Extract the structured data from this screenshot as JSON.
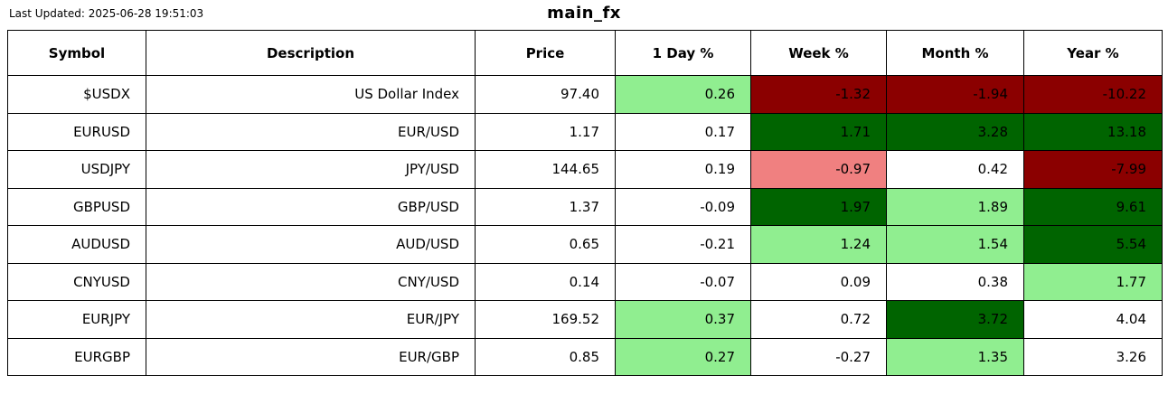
{
  "header": {
    "last_updated": "Last Updated: 2025-06-28 19:51:03",
    "title": "main_fx"
  },
  "colors": {
    "none": "#FFFFFF",
    "light_green": "#90EE90",
    "dark_green": "#006400",
    "light_red": "#F08080",
    "dark_red": "#8B0000",
    "border": "#000000",
    "text": "#000000"
  },
  "table": {
    "columns": [
      "Symbol",
      "Description",
      "Price",
      "1 Day %",
      "Week %",
      "Month %",
      "Year %"
    ],
    "rows": [
      {
        "symbol": "$USDX",
        "description": "US Dollar Index",
        "price": "97.40",
        "day": {
          "value": "0.26",
          "bg": "light_green"
        },
        "week": {
          "value": "-1.32",
          "bg": "dark_red"
        },
        "month": {
          "value": "-1.94",
          "bg": "dark_red"
        },
        "year": {
          "value": "-10.22",
          "bg": "dark_red"
        }
      },
      {
        "symbol": "EURUSD",
        "description": "EUR/USD",
        "price": "1.17",
        "day": {
          "value": "0.17",
          "bg": "none"
        },
        "week": {
          "value": "1.71",
          "bg": "dark_green"
        },
        "month": {
          "value": "3.28",
          "bg": "dark_green"
        },
        "year": {
          "value": "13.18",
          "bg": "dark_green"
        }
      },
      {
        "symbol": "USDJPY",
        "description": "JPY/USD",
        "price": "144.65",
        "day": {
          "value": "0.19",
          "bg": "none"
        },
        "week": {
          "value": "-0.97",
          "bg": "light_red"
        },
        "month": {
          "value": "0.42",
          "bg": "none"
        },
        "year": {
          "value": "-7.99",
          "bg": "dark_red"
        }
      },
      {
        "symbol": "GBPUSD",
        "description": "GBP/USD",
        "price": "1.37",
        "day": {
          "value": "-0.09",
          "bg": "none"
        },
        "week": {
          "value": "1.97",
          "bg": "dark_green"
        },
        "month": {
          "value": "1.89",
          "bg": "light_green"
        },
        "year": {
          "value": "9.61",
          "bg": "dark_green"
        }
      },
      {
        "symbol": "AUDUSD",
        "description": "AUD/USD",
        "price": "0.65",
        "day": {
          "value": "-0.21",
          "bg": "none"
        },
        "week": {
          "value": "1.24",
          "bg": "light_green"
        },
        "month": {
          "value": "1.54",
          "bg": "light_green"
        },
        "year": {
          "value": "5.54",
          "bg": "dark_green"
        }
      },
      {
        "symbol": "CNYUSD",
        "description": "CNY/USD",
        "price": "0.14",
        "day": {
          "value": "-0.07",
          "bg": "none"
        },
        "week": {
          "value": "0.09",
          "bg": "none"
        },
        "month": {
          "value": "0.38",
          "bg": "none"
        },
        "year": {
          "value": "1.77",
          "bg": "light_green"
        }
      },
      {
        "symbol": "EURJPY",
        "description": "EUR/JPY",
        "price": "169.52",
        "day": {
          "value": "0.37",
          "bg": "light_green"
        },
        "week": {
          "value": "0.72",
          "bg": "none"
        },
        "month": {
          "value": "3.72",
          "bg": "dark_green"
        },
        "year": {
          "value": "4.04",
          "bg": "none"
        }
      },
      {
        "symbol": "EURGBP",
        "description": "EUR/GBP",
        "price": "0.85",
        "day": {
          "value": "0.27",
          "bg": "light_green"
        },
        "week": {
          "value": "-0.27",
          "bg": "none"
        },
        "month": {
          "value": "1.35",
          "bg": "light_green"
        },
        "year": {
          "value": "3.26",
          "bg": "none"
        }
      }
    ]
  },
  "chart_data": {
    "type": "table",
    "title": "main_fx",
    "last_updated_label": "Last Updated: 2025-06-28 19:51:03",
    "columns": [
      "Symbol",
      "Description",
      "Price",
      "1 Day %",
      "Week %",
      "Month %",
      "Year %"
    ],
    "rows": [
      [
        "$USDX",
        "US Dollar Index",
        97.4,
        0.26,
        -1.32,
        -1.94,
        -10.22
      ],
      [
        "EURUSD",
        "EUR/USD",
        1.17,
        0.17,
        1.71,
        3.28,
        13.18
      ],
      [
        "USDJPY",
        "JPY/USD",
        144.65,
        0.19,
        -0.97,
        0.42,
        -7.99
      ],
      [
        "GBPUSD",
        "GBP/USD",
        1.37,
        -0.09,
        1.97,
        1.89,
        9.61
      ],
      [
        "AUDUSD",
        "AUD/USD",
        0.65,
        -0.21,
        1.24,
        1.54,
        5.54
      ],
      [
        "CNYUSD",
        "CNY/USD",
        0.14,
        -0.07,
        0.09,
        0.38,
        1.77
      ],
      [
        "EURJPY",
        "EUR/JPY",
        169.52,
        0.37,
        0.72,
        3.72,
        4.04
      ],
      [
        "EURGBP",
        "EUR/GBP",
        0.85,
        0.27,
        -0.27,
        1.35,
        3.26
      ]
    ]
  }
}
